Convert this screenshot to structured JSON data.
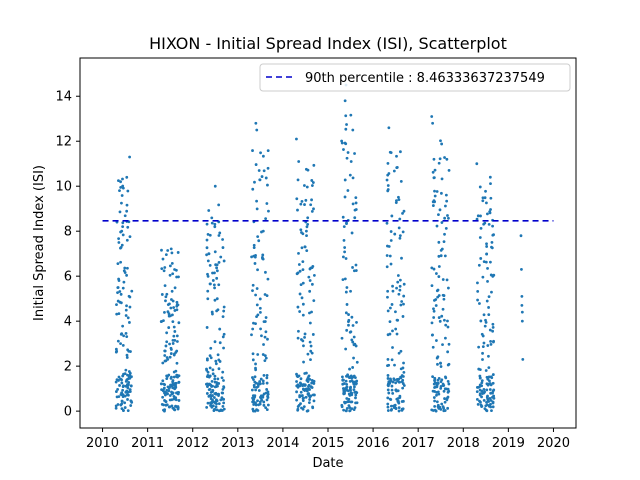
{
  "chart_data": {
    "type": "scatter",
    "title": "HIXON - Initial Spread Index (ISI), Scatterplot",
    "xlabel": "Date",
    "ylabel": "Initial Spread Index (ISI)",
    "xlim": [
      2009.5,
      2020.5
    ],
    "ylim": [
      -0.75,
      15.7
    ],
    "x_ticks": [
      2010,
      2011,
      2012,
      2013,
      2014,
      2015,
      2016,
      2017,
      2018,
      2019,
      2020
    ],
    "y_ticks": [
      0,
      2,
      4,
      6,
      8,
      10,
      12,
      14
    ],
    "grid": false,
    "legend_position": "top-right",
    "colors": {
      "points": "#1f77b4",
      "percentile_line": "#0000cc"
    },
    "percentile_line": {
      "label": "90th percentile : 8.46333637237549",
      "value": 8.46333637237549,
      "x_range": [
        2010,
        2020
      ]
    },
    "season_clusters": [
      {
        "x_range": [
          2010.3,
          2010.65
        ],
        "y_max": 11.3,
        "count": 150
      },
      {
        "x_range": [
          2011.3,
          2011.7
        ],
        "y_max": 7.9,
        "count": 170
      },
      {
        "x_range": [
          2012.3,
          2012.7
        ],
        "y_max": 10.0,
        "count": 160
      },
      {
        "x_range": [
          2013.3,
          2013.68
        ],
        "y_max": 12.8,
        "count": 140
      },
      {
        "x_range": [
          2014.3,
          2014.7
        ],
        "y_max": 12.1,
        "count": 150
      },
      {
        "x_range": [
          2015.3,
          2015.65
        ],
        "y_max": 14.5,
        "count": 150
      },
      {
        "x_range": [
          2016.3,
          2016.7
        ],
        "y_max": 12.6,
        "count": 150
      },
      {
        "x_range": [
          2017.3,
          2017.7
        ],
        "y_max": 13.1,
        "count": 150
      },
      {
        "x_range": [
          2018.3,
          2018.68
        ],
        "y_max": 11.0,
        "count": 150
      }
    ],
    "points": [
      {
        "x": 2019.28,
        "y": 7.8
      },
      {
        "x": 2019.29,
        "y": 6.3
      },
      {
        "x": 2019.3,
        "y": 5.1
      },
      {
        "x": 2019.3,
        "y": 4.7
      },
      {
        "x": 2019.31,
        "y": 4.4
      },
      {
        "x": 2019.31,
        "y": 4.0
      },
      {
        "x": 2019.32,
        "y": 2.3
      },
      {
        "x": 2010.4,
        "y": 10.2
      },
      {
        "x": 2010.6,
        "y": 11.3
      },
      {
        "x": 2012.5,
        "y": 10.0
      },
      {
        "x": 2013.4,
        "y": 12.8
      },
      {
        "x": 2013.42,
        "y": 12.5
      },
      {
        "x": 2014.3,
        "y": 12.1
      },
      {
        "x": 2014.35,
        "y": 11.1
      },
      {
        "x": 2015.4,
        "y": 14.5
      },
      {
        "x": 2015.38,
        "y": 13.8
      },
      {
        "x": 2015.55,
        "y": 12.5
      },
      {
        "x": 2016.35,
        "y": 12.6
      },
      {
        "x": 2017.3,
        "y": 13.1
      },
      {
        "x": 2017.32,
        "y": 12.8
      },
      {
        "x": 2017.35,
        "y": 11.2
      },
      {
        "x": 2018.3,
        "y": 11.0
      },
      {
        "x": 2018.6,
        "y": 10.4
      }
    ]
  }
}
